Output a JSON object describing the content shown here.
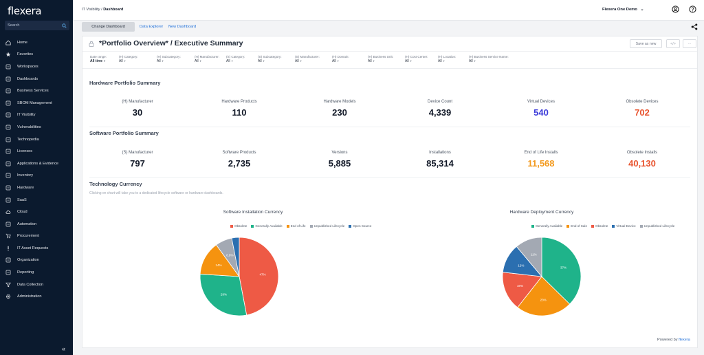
{
  "app": {
    "logo": "flexera"
  },
  "sidebar": {
    "search_placeholder": "Search",
    "items": [
      {
        "label": "Home",
        "icon": "home-icon"
      },
      {
        "label": "Favorites",
        "icon": "star-icon"
      },
      {
        "label": "Workspaces",
        "icon": "workspace-icon"
      },
      {
        "label": "Dashboards",
        "icon": "dashboard-icon"
      },
      {
        "label": "Business Services",
        "icon": "business-icon"
      },
      {
        "label": "SBOM Management",
        "icon": "sbom-icon"
      },
      {
        "label": "IT Visibility",
        "icon": "visibility-icon"
      },
      {
        "label": "Vulnerabilities",
        "icon": "vulnerability-icon"
      },
      {
        "label": "Technopedia",
        "icon": "book-icon"
      },
      {
        "label": "Licenses",
        "icon": "license-icon"
      },
      {
        "label": "Applications & Evidence",
        "icon": "apps-icon"
      },
      {
        "label": "Inventory",
        "icon": "inventory-icon"
      },
      {
        "label": "Hardware",
        "icon": "hardware-icon"
      },
      {
        "label": "SaaS",
        "icon": "saas-icon"
      },
      {
        "label": "Cloud",
        "icon": "cloud-icon"
      },
      {
        "label": "Automation",
        "icon": "automation-icon"
      },
      {
        "label": "Procurement",
        "icon": "cart-icon"
      },
      {
        "label": "IT Asset Requests",
        "icon": "exclamation-icon"
      },
      {
        "label": "Organization",
        "icon": "org-icon"
      },
      {
        "label": "Reporting",
        "icon": "report-icon"
      },
      {
        "label": "Data Collection",
        "icon": "filter-icon"
      },
      {
        "label": "Administration",
        "icon": "gear-icon"
      }
    ],
    "collapse_label": "«"
  },
  "header": {
    "breadcrumb_parent": "IT Visibility / ",
    "breadcrumb_current": "Dashboard",
    "account_label": "Flexera One Demo",
    "account_caret": "⌄"
  },
  "subbar": {
    "change_dashboard": "Change Dashboard",
    "data_explorer": "Data Explorer",
    "new_dashboard": "New Dashboard"
  },
  "dashboard": {
    "title": "*Portfolio Overview* / Executive Summary",
    "save_as_new": "Save as new",
    "code_button": "</>",
    "more_button": "···"
  },
  "filters": [
    {
      "label": "Date range:",
      "value": "All time"
    },
    {
      "label": "(H) Category:",
      "value": "All"
    },
    {
      "label": "(H) Subcategory:",
      "value": "All"
    },
    {
      "label": "(H) Manufacturer:",
      "value": "All"
    },
    {
      "label": "(S) Category:",
      "value": "All"
    },
    {
      "label": "(S) Subcategory:",
      "value": "All"
    },
    {
      "label": "(S) Manufacturer:",
      "value": "All"
    },
    {
      "label": "(H) Domain:",
      "value": "All"
    },
    {
      "label": "(H) Business Unit:",
      "value": "All"
    },
    {
      "label": "(H) Cost Center:",
      "value": "All"
    },
    {
      "label": "(H) Location:",
      "value": "All"
    },
    {
      "label": "(H) Business Service Name:",
      "value": "All"
    }
  ],
  "hardware_summary": {
    "title": "Hardware Portfolio Summary",
    "metrics": [
      {
        "label": "(H) Manufacturer",
        "value": "30",
        "color": "#111827"
      },
      {
        "label": "Hardware Products",
        "value": "110",
        "color": "#111827"
      },
      {
        "label": "Hardware Models",
        "value": "230",
        "color": "#111827"
      },
      {
        "label": "Device Count",
        "value": "4,339",
        "color": "#111827"
      },
      {
        "label": "Virtual Devices",
        "value": "540",
        "color": "#3b3bd9"
      },
      {
        "label": "Obsolete Devices",
        "value": "702",
        "color": "#e8542f"
      }
    ]
  },
  "software_summary": {
    "title": "Software Portfolio Summary",
    "metrics": [
      {
        "label": "(S) Manufacturer",
        "value": "797",
        "color": "#111827"
      },
      {
        "label": "Software Products",
        "value": "2,735",
        "color": "#111827"
      },
      {
        "label": "Versions",
        "value": "5,885",
        "color": "#111827"
      },
      {
        "label": "Installations",
        "value": "85,314",
        "color": "#111827"
      },
      {
        "label": "End of Life Installs",
        "value": "11,568",
        "color": "#f39a1e"
      },
      {
        "label": "Obsolete Installs",
        "value": "40,130",
        "color": "#e8542f"
      }
    ]
  },
  "technology_currency": {
    "title": "Technology Currency",
    "subtitle": "Clicking on chart will take you to a dedicated lifecycle software or hardware dashboards."
  },
  "chart_data": [
    {
      "type": "pie",
      "title": "Software Installation Currency",
      "legend_position": "top",
      "slices": [
        {
          "name": "Obsolete",
          "value": 47,
          "label": "47%",
          "color": "#ee5a45"
        },
        {
          "name": "Generally Available",
          "value": 29,
          "label": "29%",
          "color": "#1fb38a"
        },
        {
          "name": "End of Life",
          "value": 14,
          "label": "14%",
          "color": "#f5930f"
        },
        {
          "name": "Unpublished Lifecycle",
          "value": 6.9,
          "label": "6.9%",
          "color": "#a3a9b3"
        },
        {
          "name": "Open Source",
          "value": 3.1,
          "label": "",
          "color": "#2b6fb0"
        }
      ]
    },
    {
      "type": "pie",
      "title": "Hardware Deployment Currency",
      "legend_position": "top",
      "slices": [
        {
          "name": "Generally Available",
          "value": 37,
          "label": "37%",
          "color": "#1fb38a"
        },
        {
          "name": "End of Sale",
          "value": 23,
          "label": "23%",
          "color": "#f5930f"
        },
        {
          "name": "Obsolete",
          "value": 16,
          "label": "16%",
          "color": "#ee5a45"
        },
        {
          "name": "Virtual Device",
          "value": 12,
          "label": "12%",
          "color": "#2b6fb0"
        },
        {
          "name": "Unpublished Lifecycle",
          "value": 11,
          "label": "11%",
          "color": "#a3a9b3"
        }
      ]
    }
  ],
  "footer": {
    "powered_by": "Powered by ",
    "brand": "flexera"
  }
}
